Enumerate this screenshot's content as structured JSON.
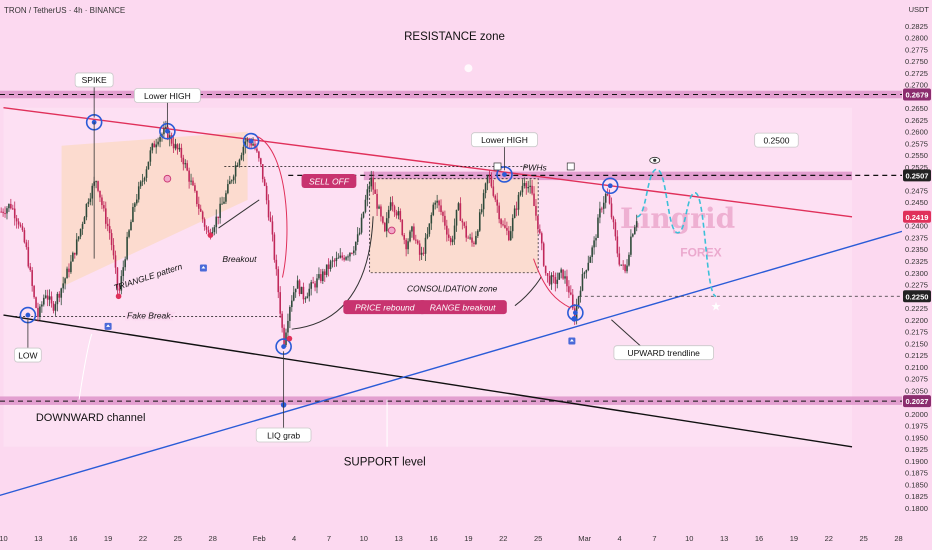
{
  "header": {
    "symbol": "TRON / TetherUS · 4h · BINANCE",
    "quote_currency": "USDT"
  },
  "watermark": {
    "line1": "Lingrid",
    "line2": "FOREX"
  },
  "chart_data": {
    "type": "candlestick",
    "title": "TRON / TetherUS · 4h · BINANCE",
    "price_axis": {
      "label": "USDT",
      "ticks": [
        0.285,
        0.2825,
        0.28,
        0.2775,
        0.275,
        0.2725,
        0.27,
        0.265,
        0.2625,
        0.26,
        0.2575,
        0.255,
        0.2525,
        0.2475,
        0.245,
        0.24,
        0.2375,
        0.235,
        0.2325,
        0.23,
        0.2275,
        0.2225,
        0.22,
        0.2175,
        0.215,
        0.2125,
        0.21,
        0.2075,
        0.205,
        0.2025,
        0.2,
        0.1975,
        0.195,
        0.1925,
        0.19,
        0.1875,
        0.185,
        0.1825,
        0.18,
        0.1775
      ],
      "tick_labels": [
        "0.2850",
        "0.2825",
        "0.2800",
        "0.2775",
        "0.2750",
        "0.2725",
        "0.2700",
        "0.2650",
        "0.2625",
        "0.2600",
        "0.2575",
        "0.2550",
        "0.2525",
        "0.2475",
        "0.2450",
        "0.2400",
        "0.2375",
        "0.2350",
        "0.2325",
        "0.2300",
        "0.2275",
        "0.2225",
        "0.2200",
        "0.2175",
        "0.2150",
        "0.2125",
        "0.2100",
        "0.2075",
        "0.2050",
        "0.2025",
        "0.2000",
        "0.1975",
        "0.1950",
        "0.1925",
        "0.1900",
        "0.1875",
        "0.1850",
        "0.1825",
        "0.1800",
        "0.1775"
      ],
      "ylim": [
        0.177,
        0.288
      ],
      "highlighted": [
        {
          "label": "0.2679",
          "value": 0.2679,
          "color": "#8b2d6e"
        },
        {
          "label": "0.2507",
          "value": 0.2507,
          "color": "#222222"
        },
        {
          "label": "0.2419",
          "value": 0.2419,
          "color": "#e0305a"
        },
        {
          "label": "0.2250",
          "value": 0.225,
          "color": "#222222"
        },
        {
          "label": "0.2027",
          "value": 0.2027,
          "color": "#8b2d6e"
        }
      ]
    },
    "time_axis": {
      "ticks": [
        {
          "label": "10",
          "t": 0
        },
        {
          "label": "13",
          "t": 3
        },
        {
          "label": "16",
          "t": 6
        },
        {
          "label": "19",
          "t": 9
        },
        {
          "label": "22",
          "t": 12
        },
        {
          "label": "25",
          "t": 15
        },
        {
          "label": "28",
          "t": 18
        },
        {
          "label": "Feb",
          "t": 22
        },
        {
          "label": "4",
          "t": 25
        },
        {
          "label": "7",
          "t": 28
        },
        {
          "label": "10",
          "t": 31
        },
        {
          "label": "13",
          "t": 34
        },
        {
          "label": "16",
          "t": 37
        },
        {
          "label": "19",
          "t": 40
        },
        {
          "label": "22",
          "t": 43
        },
        {
          "label": "25",
          "t": 46
        },
        {
          "label": "Mar",
          "t": 50
        },
        {
          "label": "4",
          "t": 53
        },
        {
          "label": "7",
          "t": 56
        },
        {
          "label": "10",
          "t": 59
        },
        {
          "label": "13",
          "t": 62
        },
        {
          "label": "16",
          "t": 65
        },
        {
          "label": "19",
          "t": 68
        },
        {
          "label": "22",
          "t": 71
        },
        {
          "label": "25",
          "t": 74
        },
        {
          "label": "28",
          "t": 77
        }
      ],
      "tlim": [
        -0.3,
        77.3
      ]
    },
    "price_anchors": [
      [
        -0.2,
        0.243
      ],
      [
        0.6,
        0.2445
      ],
      [
        1.3,
        0.241
      ],
      [
        2,
        0.2345
      ],
      [
        2.6,
        0.2248
      ],
      [
        3,
        0.2205
      ],
      [
        3.6,
        0.226
      ],
      [
        4.2,
        0.2225
      ],
      [
        5,
        0.227
      ],
      [
        5.8,
        0.232
      ],
      [
        6.5,
        0.238
      ],
      [
        7.3,
        0.246
      ],
      [
        8,
        0.25
      ],
      [
        8.6,
        0.243
      ],
      [
        9.2,
        0.238
      ],
      [
        9.9,
        0.225
      ],
      [
        10.6,
        0.236
      ],
      [
        11.3,
        0.245
      ],
      [
        12,
        0.25
      ],
      [
        12.7,
        0.256
      ],
      [
        13.3,
        0.259
      ],
      [
        14,
        0.26
      ],
      [
        14.7,
        0.257
      ],
      [
        15.4,
        0.2545
      ],
      [
        16,
        0.25
      ],
      [
        16.8,
        0.244
      ],
      [
        17.6,
        0.238
      ],
      [
        18.4,
        0.242
      ],
      [
        19.2,
        0.247
      ],
      [
        20,
        0.253
      ],
      [
        20.8,
        0.258
      ],
      [
        21.5,
        0.2575
      ],
      [
        22.2,
        0.252
      ],
      [
        23,
        0.24
      ],
      [
        23.6,
        0.227
      ],
      [
        24.1,
        0.215
      ],
      [
        24.6,
        0.223
      ],
      [
        25.2,
        0.228
      ],
      [
        25.8,
        0.225
      ],
      [
        26.5,
        0.227
      ],
      [
        27.3,
        0.229
      ],
      [
        28.2,
        0.232
      ],
      [
        29,
        0.233
      ],
      [
        30,
        0.235
      ],
      [
        30.6,
        0.238
      ],
      [
        31.2,
        0.246
      ],
      [
        31.6,
        0.25
      ],
      [
        32.2,
        0.244
      ],
      [
        32.8,
        0.238
      ],
      [
        33.3,
        0.246
      ],
      [
        34,
        0.242
      ],
      [
        34.6,
        0.236
      ],
      [
        35.2,
        0.239
      ],
      [
        35.9,
        0.233
      ],
      [
        36.5,
        0.238
      ],
      [
        37.1,
        0.246
      ],
      [
        37.8,
        0.242
      ],
      [
        38.5,
        0.236
      ],
      [
        39.1,
        0.244
      ],
      [
        39.8,
        0.238
      ],
      [
        40.4,
        0.236
      ],
      [
        41.1,
        0.243
      ],
      [
        41.7,
        0.251
      ],
      [
        42.3,
        0.246
      ],
      [
        42.9,
        0.24
      ],
      [
        43.5,
        0.238
      ],
      [
        44.1,
        0.244
      ],
      [
        44.8,
        0.25
      ],
      [
        45.4,
        0.247
      ],
      [
        46,
        0.24
      ],
      [
        46.7,
        0.229
      ],
      [
        47.4,
        0.228
      ],
      [
        48.1,
        0.23
      ],
      [
        48.7,
        0.226
      ],
      [
        49.1,
        0.22
      ],
      [
        49.6,
        0.227
      ],
      [
        50.2,
        0.232
      ],
      [
        50.8,
        0.236
      ],
      [
        51.4,
        0.244
      ],
      [
        51.9,
        0.247
      ],
      [
        52.4,
        0.241
      ],
      [
        52.9,
        0.233
      ],
      [
        53.5,
        0.23
      ],
      [
        54,
        0.238
      ],
      [
        54.5,
        0.2419
      ]
    ],
    "projection": [
      [
        54.5,
        0.2419
      ],
      [
        56.2,
        0.252
      ],
      [
        58,
        0.2385
      ],
      [
        59.5,
        0.247
      ],
      [
        61.3,
        0.225
      ]
    ],
    "lines": {
      "descending_resistance": [
        [
          0,
          0.2651
        ],
        [
          73,
          0.2419
        ]
      ],
      "channel_bottom": [
        [
          0,
          0.221
        ],
        [
          73,
          0.193
        ]
      ],
      "upward_trendline": [
        [
          -4,
          0.18
        ],
        [
          77.3,
          0.2388
        ]
      ],
      "level_0_2507": [
        [
          24.5,
          0.2507
        ],
        [
          77.3,
          0.2507
        ]
      ],
      "level_0_2250": [
        [
          49.5,
          0.225
        ],
        [
          77.3,
          0.225
        ]
      ],
      "fake_break": [
        [
          1,
          0.2207
        ],
        [
          24,
          0.2207
        ]
      ],
      "pwhs": [
        [
          19,
          0.2526
        ],
        [
          45,
          0.2526
        ]
      ]
    },
    "zones": {
      "resistance_band": [
        0.2687,
        0.2671
      ],
      "support_band": [
        0.2037,
        0.2019
      ],
      "upper_band": [
        0.2515,
        0.2497
      ],
      "triangle_region": [
        [
          5,
          0.257
        ],
        [
          21,
          0.26
        ],
        [
          21,
          0.2455
        ],
        [
          5,
          0.227
        ]
      ],
      "consolidation_box": [
        [
          31.5,
          0.25
        ],
        [
          46,
          0.25
        ],
        [
          46,
          0.23
        ],
        [
          31.5,
          0.23
        ]
      ]
    },
    "pivots": [
      {
        "label": "LOW",
        "t": 2.1,
        "p": 0.221
      },
      {
        "label": "SPIKE",
        "t": 7.8,
        "p": 0.262
      },
      {
        "label": "Lower HIGH",
        "t": 14.1,
        "p": 0.2601
      },
      {
        "label": "",
        "t": 21.3,
        "p": 0.258
      },
      {
        "label": "LIQ grab",
        "t": 24.1,
        "p": 0.2143
      },
      {
        "label": "Lower HIGH",
        "t": 43.1,
        "p": 0.2509
      },
      {
        "label": "",
        "t": 49.2,
        "p": 0.2215
      },
      {
        "label": "",
        "t": 52.2,
        "p": 0.2485
      }
    ],
    "annotations": {
      "resistance_zone": "RESISTANCE zone",
      "support_level": "SUPPORT level",
      "spike": "SPIKE",
      "lower_high_1": "Lower HIGH",
      "lower_high_2": "Lower HIGH",
      "low": "LOW",
      "liq_grab": "LIQ grab",
      "downward_channel": "DOWNWARD channel",
      "upward_trendline": "UPWARD trendline",
      "triangle_pattern": "TRIANGLE pattern",
      "breakout": "Breakout",
      "fake_break": "Fake Break",
      "sell_off": "SELL OFF",
      "price_rebound": "PRICE rebound",
      "range_breakout": "RANGE breakout",
      "consolidation_zone": "CONSOLIDATION zone",
      "pwhs": "PWHs",
      "target_price": "0.2500"
    },
    "colors": {
      "background": "#fcd9f0",
      "resistance_line": "#e0305a",
      "channel_line": "#111111",
      "trend_line": "#2a5bd7",
      "pivot_circle": "#2a5bd7",
      "candle_up": "#2f4a3a",
      "candle_down": "#c0285a",
      "projection": "#3cc0d8",
      "label_box": "#c8336f",
      "zone_band": "#d98ac4"
    }
  }
}
